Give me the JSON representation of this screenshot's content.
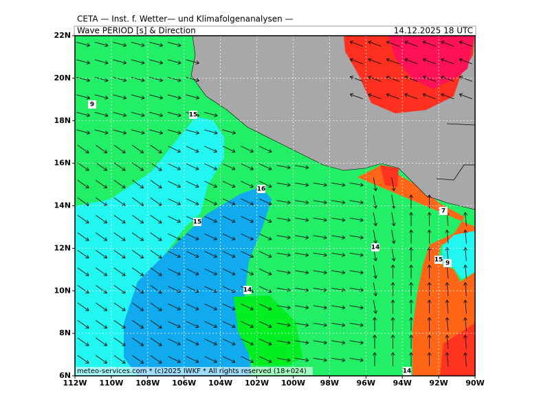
{
  "header": {
    "institute": "CETA — Inst. f. Wetter— und Klimafolgenanalysen —",
    "title": "Wave PERIOD [s] & Direction",
    "date": "14.12.2025 18 UTC"
  },
  "axes": {
    "x_labels": [
      "112W",
      "110W",
      "108W",
      "106W",
      "104W",
      "102W",
      "100W",
      "98W",
      "96W",
      "94W",
      "92W",
      "90W"
    ],
    "y_labels": [
      "22N",
      "20N",
      "18N",
      "16N",
      "14N",
      "12N",
      "10N",
      "8N",
      "6N"
    ]
  },
  "contour_labels": [
    "9",
    "15",
    "16",
    "15",
    "14",
    "14",
    "7",
    "15",
    "9",
    "14"
  ],
  "footer": "meteo-services.com * (c)2025 IWKF * All rights reserved (18+024)"
}
